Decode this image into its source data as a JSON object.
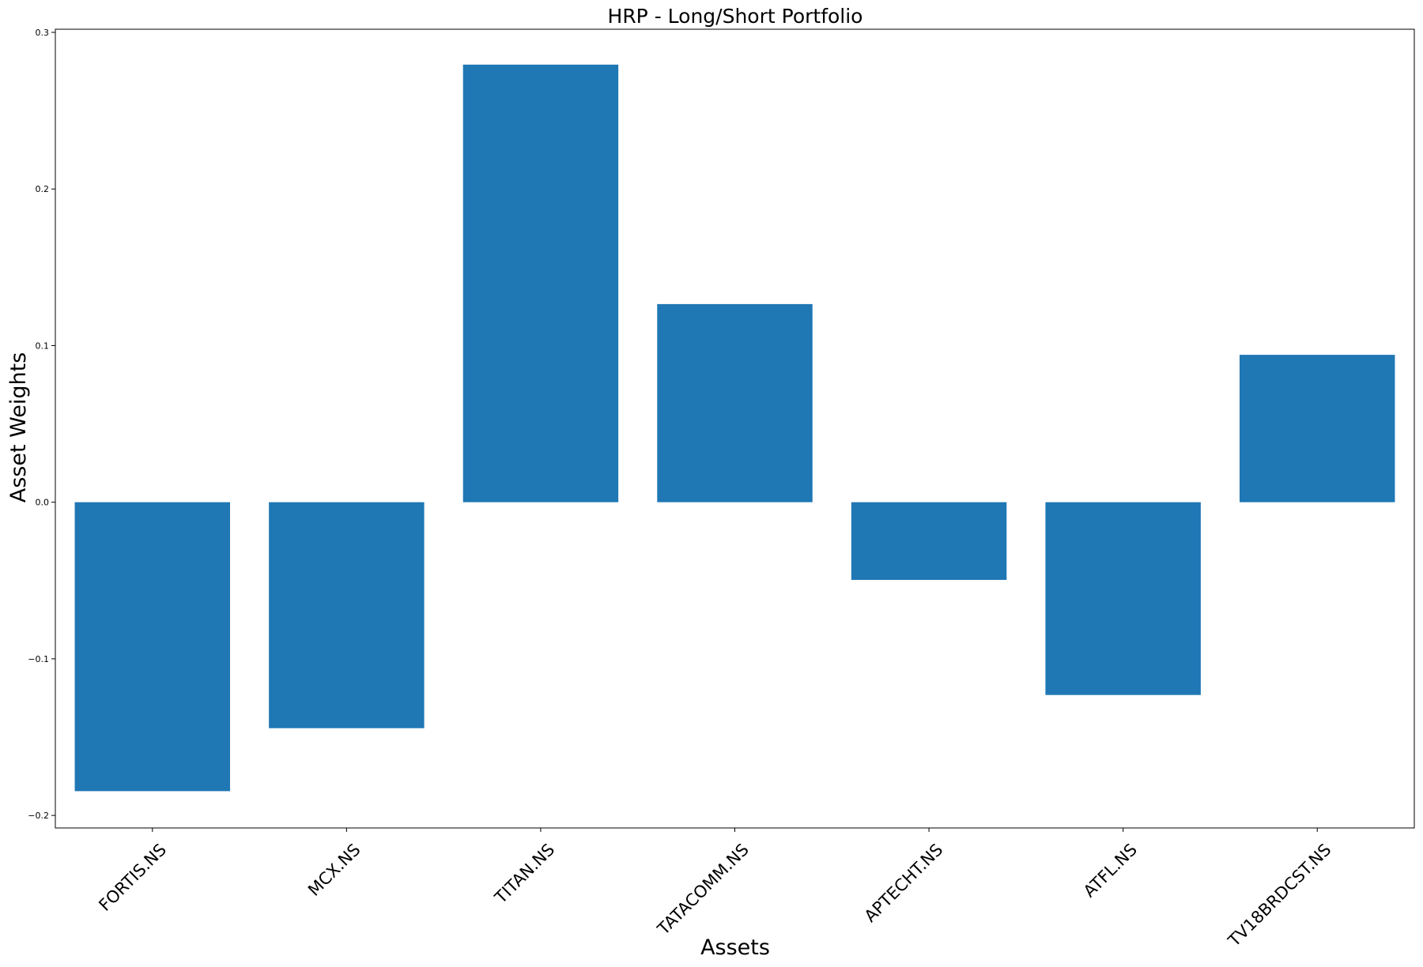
{
  "chart_data": {
    "type": "bar",
    "title": "HRP - Long/Short Portfolio",
    "xlabel": "Assets",
    "ylabel": "Asset Weights",
    "categories": [
      "FORTIS.NS",
      "MCX.NS",
      "TITAN.NS",
      "TATACOMM.NS",
      "APTECHT.NS",
      "ATFL.NS",
      "TV18BRDCST.NS"
    ],
    "values": [
      -0.1845,
      -0.1443,
      0.2794,
      0.1265,
      -0.0496,
      -0.1231,
      0.0941
    ],
    "ylim": [
      -0.208,
      0.302
    ],
    "yticks": [
      -0.2,
      -0.1,
      0.0,
      0.1,
      0.2,
      0.3
    ],
    "ytick_labels": [
      "−0.2",
      "−0.1",
      "0.0",
      "0.1",
      "0.2",
      "0.3"
    ],
    "bar_color": "#1f77b4",
    "grid": false,
    "legend": "none"
  }
}
